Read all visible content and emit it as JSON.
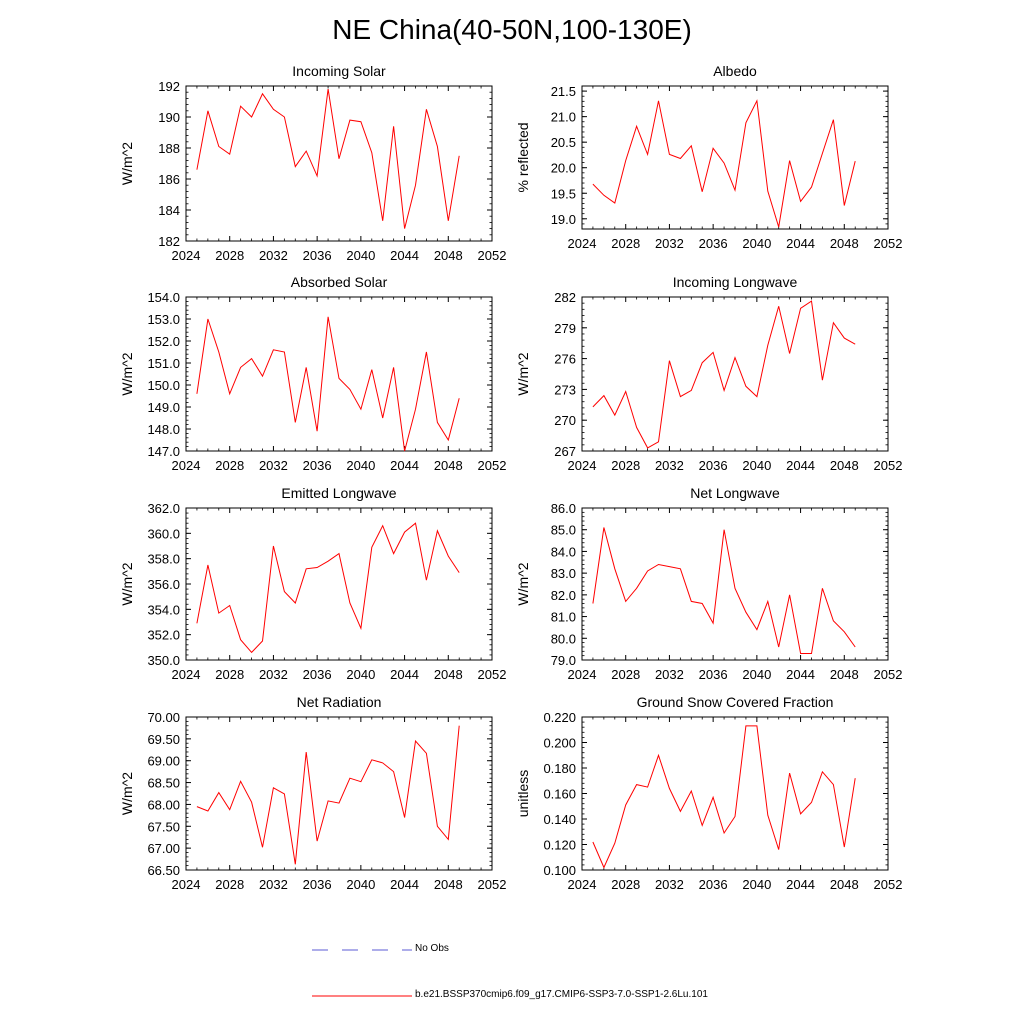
{
  "title": "NE China(40-50N,100-130E)",
  "colors": {
    "model_line": "#ff0000",
    "obs_line": "#5b5bd6",
    "frame": "#000000"
  },
  "legend": {
    "obs_label": "No Obs",
    "model_label": "b.e21.BSSP370cmip6.f09_g17.CMIP6-SSP3-7.0-SSP1-2.6Lu.101"
  },
  "chart_data": [
    {
      "type": "line",
      "title": "Incoming Solar",
      "ylabel": "W/m^2",
      "xlim": [
        2024,
        2052
      ],
      "ylim": [
        182,
        192
      ],
      "x_ticks": [
        2024,
        2028,
        2032,
        2036,
        2040,
        2044,
        2048,
        2052
      ],
      "y_ticks": [
        182,
        184,
        186,
        188,
        190,
        192
      ],
      "y_tick_labels": [
        "182",
        "184",
        "186",
        "188",
        "190",
        "192"
      ],
      "series": [
        {
          "x": [
            2025,
            2026,
            2027,
            2028,
            2029,
            2030,
            2031,
            2032,
            2033,
            2034,
            2035,
            2036,
            2037,
            2038,
            2039,
            2040,
            2041,
            2042,
            2043,
            2044,
            2045,
            2046,
            2047,
            2048,
            2049
          ],
          "y": [
            186.6,
            190.4,
            188.1,
            187.6,
            190.7,
            190.0,
            191.5,
            190.5,
            190.0,
            186.8,
            187.8,
            186.2,
            191.8,
            187.3,
            189.8,
            189.7,
            187.7,
            183.3,
            189.4,
            182.8,
            185.6,
            190.5,
            188.1,
            183.3,
            187.5
          ]
        }
      ]
    },
    {
      "type": "line",
      "title": "Albedo",
      "ylabel": "% reflected",
      "xlim": [
        2024,
        2052
      ],
      "ylim": [
        18.8,
        21.6
      ],
      "x_ticks": [
        2024,
        2028,
        2032,
        2036,
        2040,
        2044,
        2048,
        2052
      ],
      "y_ticks": [
        19.0,
        19.5,
        20.0,
        20.5,
        21.0,
        21.5
      ],
      "y_tick_labels": [
        "19.0",
        "19.5",
        "20.0",
        "20.5",
        "21.0",
        "21.5"
      ],
      "series": [
        {
          "x": [
            2025,
            2026,
            2027,
            2028,
            2029,
            2030,
            2031,
            2032,
            2033,
            2034,
            2035,
            2036,
            2037,
            2038,
            2039,
            2040,
            2041,
            2042,
            2043,
            2044,
            2045,
            2046,
            2047,
            2048,
            2049
          ],
          "y": [
            19.68,
            19.46,
            19.31,
            20.14,
            20.81,
            20.26,
            21.31,
            20.26,
            20.18,
            20.43,
            19.53,
            20.38,
            20.09,
            19.56,
            20.88,
            21.31,
            19.54,
            18.84,
            20.14,
            19.34,
            19.62,
            20.28,
            20.94,
            19.26,
            20.13
          ]
        }
      ]
    },
    {
      "type": "line",
      "title": "Absorbed Solar",
      "ylabel": "W/m^2",
      "xlim": [
        2024,
        2052
      ],
      "ylim": [
        147,
        154
      ],
      "x_ticks": [
        2024,
        2028,
        2032,
        2036,
        2040,
        2044,
        2048,
        2052
      ],
      "y_ticks": [
        147,
        148,
        149,
        150,
        151,
        152,
        153,
        154
      ],
      "y_tick_labels": [
        "147.0",
        "148.0",
        "149.0",
        "150.0",
        "151.0",
        "152.0",
        "153.0",
        "154.0"
      ],
      "series": [
        {
          "x": [
            2025,
            2026,
            2027,
            2028,
            2029,
            2030,
            2031,
            2032,
            2033,
            2034,
            2035,
            2036,
            2037,
            2038,
            2039,
            2040,
            2041,
            2042,
            2043,
            2044,
            2045,
            2046,
            2047,
            2048,
            2049
          ],
          "y": [
            149.6,
            153.0,
            151.5,
            149.6,
            150.8,
            151.2,
            150.4,
            151.6,
            151.5,
            148.3,
            150.8,
            147.9,
            153.1,
            150.3,
            149.8,
            148.9,
            150.7,
            148.5,
            150.8,
            147.0,
            148.9,
            151.5,
            148.3,
            147.5,
            149.4
          ]
        }
      ]
    },
    {
      "type": "line",
      "title": "Incoming Longwave",
      "ylabel": "W/m^2",
      "xlim": [
        2024,
        2052
      ],
      "ylim": [
        267,
        282
      ],
      "x_ticks": [
        2024,
        2028,
        2032,
        2036,
        2040,
        2044,
        2048,
        2052
      ],
      "y_ticks": [
        267,
        270,
        273,
        276,
        279,
        282
      ],
      "y_tick_labels": [
        "267",
        "270",
        "273",
        "276",
        "279",
        "282"
      ],
      "series": [
        {
          "x": [
            2025,
            2026,
            2027,
            2028,
            2029,
            2030,
            2031,
            2032,
            2033,
            2034,
            2035,
            2036,
            2037,
            2038,
            2039,
            2040,
            2041,
            2042,
            2043,
            2044,
            2045,
            2046,
            2047,
            2048,
            2049
          ],
          "y": [
            271.3,
            272.4,
            270.5,
            272.8,
            269.3,
            267.3,
            267.9,
            275.8,
            272.3,
            272.9,
            275.6,
            276.6,
            272.9,
            276.1,
            273.3,
            272.3,
            277.3,
            281.1,
            276.5,
            280.9,
            281.6,
            273.9,
            279.5,
            278.0,
            277.4
          ]
        }
      ]
    },
    {
      "type": "line",
      "title": "Emitted Longwave",
      "ylabel": "W/m^2",
      "xlim": [
        2024,
        2052
      ],
      "ylim": [
        350,
        362
      ],
      "x_ticks": [
        2024,
        2028,
        2032,
        2036,
        2040,
        2044,
        2048,
        2052
      ],
      "y_ticks": [
        350,
        352,
        354,
        356,
        358,
        360,
        362
      ],
      "y_tick_labels": [
        "350.0",
        "352.0",
        "354.0",
        "356.0",
        "358.0",
        "360.0",
        "362.0"
      ],
      "series": [
        {
          "x": [
            2025,
            2026,
            2027,
            2028,
            2029,
            2030,
            2031,
            2032,
            2033,
            2034,
            2035,
            2036,
            2037,
            2038,
            2039,
            2040,
            2041,
            2042,
            2043,
            2044,
            2045,
            2046,
            2047,
            2048,
            2049
          ],
          "y": [
            352.9,
            357.5,
            353.7,
            354.3,
            351.6,
            350.6,
            351.5,
            359.0,
            355.4,
            354.5,
            357.2,
            357.3,
            357.8,
            358.4,
            354.5,
            352.5,
            358.9,
            360.6,
            358.4,
            360.1,
            360.8,
            356.3,
            360.2,
            358.2,
            356.9
          ]
        }
      ]
    },
    {
      "type": "line",
      "title": "Net Longwave",
      "ylabel": "W/m^2",
      "xlim": [
        2024,
        2052
      ],
      "ylim": [
        79,
        86
      ],
      "x_ticks": [
        2024,
        2028,
        2032,
        2036,
        2040,
        2044,
        2048,
        2052
      ],
      "y_ticks": [
        79,
        80,
        81,
        82,
        83,
        84,
        85,
        86
      ],
      "y_tick_labels": [
        "79.0",
        "80.0",
        "81.0",
        "82.0",
        "83.0",
        "84.0",
        "85.0",
        "86.0"
      ],
      "series": [
        {
          "x": [
            2025,
            2026,
            2027,
            2028,
            2029,
            2030,
            2031,
            2032,
            2033,
            2034,
            2035,
            2036,
            2037,
            2038,
            2039,
            2040,
            2041,
            2042,
            2043,
            2044,
            2045,
            2046,
            2047,
            2048,
            2049
          ],
          "y": [
            81.6,
            85.1,
            83.2,
            81.7,
            82.3,
            83.1,
            83.4,
            83.3,
            83.2,
            81.7,
            81.6,
            80.7,
            85.0,
            82.3,
            81.2,
            80.4,
            81.7,
            79.6,
            82.0,
            79.3,
            79.3,
            82.3,
            80.8,
            80.3,
            79.6
          ]
        }
      ]
    },
    {
      "type": "line",
      "title": "Net Radiation",
      "ylabel": "W/m^2",
      "xlim": [
        2024,
        2052
      ],
      "ylim": [
        66.5,
        70.0
      ],
      "x_ticks": [
        2024,
        2028,
        2032,
        2036,
        2040,
        2044,
        2048,
        2052
      ],
      "y_ticks": [
        66.5,
        67.0,
        67.5,
        68.0,
        68.5,
        69.0,
        69.5,
        70.0
      ],
      "y_tick_labels": [
        "66.50",
        "67.00",
        "67.50",
        "68.00",
        "68.50",
        "69.00",
        "69.50",
        "70.00"
      ],
      "series": [
        {
          "x": [
            2025,
            2026,
            2027,
            2028,
            2029,
            2030,
            2031,
            2032,
            2033,
            2034,
            2035,
            2036,
            2037,
            2038,
            2039,
            2040,
            2041,
            2042,
            2043,
            2044,
            2045,
            2046,
            2047,
            2048,
            2049
          ],
          "y": [
            67.95,
            67.85,
            68.27,
            67.88,
            68.53,
            68.05,
            67.02,
            68.38,
            68.24,
            66.63,
            69.2,
            67.16,
            68.08,
            68.03,
            68.6,
            68.52,
            69.02,
            68.95,
            68.75,
            67.7,
            69.45,
            69.17,
            67.5,
            67.2,
            69.8
          ]
        }
      ]
    },
    {
      "type": "line",
      "title": "Ground Snow Covered Fraction",
      "ylabel": "unitless",
      "xlim": [
        2024,
        2052
      ],
      "ylim": [
        0.1,
        0.22
      ],
      "x_ticks": [
        2024,
        2028,
        2032,
        2036,
        2040,
        2044,
        2048,
        2052
      ],
      "y_ticks": [
        0.1,
        0.12,
        0.14,
        0.16,
        0.18,
        0.2,
        0.22
      ],
      "y_tick_labels": [
        "0.100",
        "0.120",
        "0.140",
        "0.160",
        "0.180",
        "0.200",
        "0.220"
      ],
      "series": [
        {
          "x": [
            2025,
            2026,
            2027,
            2028,
            2029,
            2030,
            2031,
            2032,
            2033,
            2034,
            2035,
            2036,
            2037,
            2038,
            2039,
            2040,
            2041,
            2042,
            2043,
            2044,
            2045,
            2046,
            2047,
            2048,
            2049
          ],
          "y": [
            0.122,
            0.102,
            0.121,
            0.151,
            0.167,
            0.165,
            0.19,
            0.164,
            0.146,
            0.162,
            0.135,
            0.157,
            0.129,
            0.142,
            0.213,
            0.213,
            0.143,
            0.116,
            0.176,
            0.144,
            0.153,
            0.177,
            0.167,
            0.118,
            0.172
          ]
        }
      ]
    }
  ]
}
